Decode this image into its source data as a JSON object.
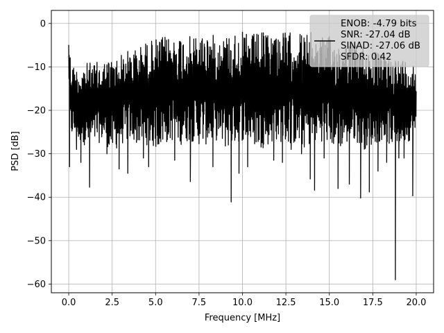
{
  "chart_data": {
    "type": "line",
    "title": "",
    "xlabel": "Frequency [MHz]",
    "ylabel": "PSD [dB]",
    "xlim": [
      -1.0,
      21.0
    ],
    "ylim": [
      -62.0,
      3.0
    ],
    "xticks": [
      0.0,
      2.5,
      5.0,
      7.5,
      10.0,
      12.5,
      15.0,
      17.5,
      20.0
    ],
    "xtick_labels": [
      "0.0",
      "2.5",
      "5.0",
      "7.5",
      "10.0",
      "12.5",
      "15.0",
      "17.5",
      "20.0"
    ],
    "yticks": [
      0,
      -10,
      -20,
      -30,
      -40,
      -50,
      -60
    ],
    "ytick_labels": [
      "0",
      "−10",
      "−20",
      "−30",
      "−40",
      "−50",
      "−60"
    ],
    "grid": true,
    "legend_position": "top-right",
    "series": [
      {
        "name": "ENOB: -4.79 bits\nSNR: -27.04 dB\nSINAD: -27.06 dB\nSFDR: 0.42",
        "color": "#000000",
        "envelope": {
          "x": [
            0.0,
            0.05,
            0.1,
            0.2,
            0.4,
            0.6,
            0.8,
            1.0,
            1.5,
            2.0,
            2.5,
            3.0,
            3.5,
            4.0,
            4.5,
            5.0,
            5.5,
            6.0,
            6.5,
            7.0,
            7.5,
            8.0,
            8.5,
            9.0,
            9.5,
            10.0,
            10.5,
            11.0,
            11.5,
            12.0,
            12.5,
            13.0,
            13.5,
            14.0,
            14.5,
            15.0,
            15.5,
            16.0,
            16.5,
            17.0,
            17.5,
            18.0,
            18.5,
            19.0,
            19.5,
            20.0
          ],
          "upper": [
            -2,
            -5,
            -7,
            -9,
            -10,
            -10,
            -9.5,
            -9,
            -9,
            -8.5,
            -8,
            -7,
            -6,
            -5.5,
            -4,
            -3.5,
            -3,
            -3,
            -2.5,
            -3,
            -2.5,
            -2,
            -3,
            -2.5,
            -2,
            -2,
            -2.5,
            -2,
            -2,
            -1.5,
            -2,
            -2,
            -2,
            -2,
            -3,
            -3,
            -4,
            -4,
            -5,
            -5,
            -6,
            -7,
            -7,
            -8,
            -8,
            -9
          ],
          "lower": [
            -12,
            -20,
            -28,
            -26,
            -27,
            -28,
            -27,
            -29,
            -28,
            -27,
            -30,
            -28,
            -27,
            -28,
            -28,
            -29,
            -28,
            -27,
            -28,
            -27,
            -28,
            -28,
            -27,
            -29,
            -28,
            -27,
            -28,
            -29,
            -28,
            -27,
            -28,
            -28,
            -29,
            -28,
            -27,
            -28,
            -29,
            -28,
            -27,
            -29,
            -28,
            -27,
            -28,
            -28,
            -27,
            -28
          ]
        },
        "dips": [
          {
            "x": 0.05,
            "y": -33.0
          },
          {
            "x": 0.45,
            "y": -29.0
          },
          {
            "x": 0.7,
            "y": -32.0
          },
          {
            "x": 1.2,
            "y": -37.7
          },
          {
            "x": 2.2,
            "y": -30.0
          },
          {
            "x": 2.9,
            "y": -33.5
          },
          {
            "x": 3.4,
            "y": -34.5
          },
          {
            "x": 4.3,
            "y": -31.0
          },
          {
            "x": 4.6,
            "y": -33.0
          },
          {
            "x": 6.1,
            "y": -31.5
          },
          {
            "x": 7.0,
            "y": -36.4
          },
          {
            "x": 8.3,
            "y": -33.0
          },
          {
            "x": 9.35,
            "y": -41.1
          },
          {
            "x": 9.8,
            "y": -34.5
          },
          {
            "x": 10.3,
            "y": -33.0
          },
          {
            "x": 11.8,
            "y": -31.5
          },
          {
            "x": 12.3,
            "y": -32.0
          },
          {
            "x": 12.8,
            "y": -29.0
          },
          {
            "x": 13.4,
            "y": -30.0
          },
          {
            "x": 13.9,
            "y": -35.8
          },
          {
            "x": 14.15,
            "y": -38.4
          },
          {
            "x": 14.7,
            "y": -31.0
          },
          {
            "x": 15.5,
            "y": -38.0
          },
          {
            "x": 16.15,
            "y": -37.0
          },
          {
            "x": 16.8,
            "y": -40.2
          },
          {
            "x": 17.3,
            "y": -38.8
          },
          {
            "x": 17.8,
            "y": -34.0
          },
          {
            "x": 18.3,
            "y": -32.0
          },
          {
            "x": 18.8,
            "y": -59.0
          },
          {
            "x": 19.0,
            "y": -31.0
          },
          {
            "x": 19.3,
            "y": -31.0
          },
          {
            "x": 19.8,
            "y": -39.7
          }
        ]
      }
    ]
  }
}
